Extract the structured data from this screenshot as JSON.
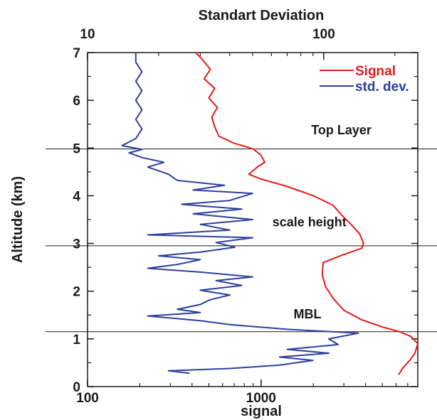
{
  "chart_data": {
    "type": "line",
    "title": "",
    "top_axis": {
      "label": "Standart Deviation",
      "scale": "log",
      "range": [
        10,
        250
      ],
      "ticks": [
        {
          "value": 10,
          "label": "10"
        },
        {
          "value": 100,
          "label": "100"
        }
      ]
    },
    "bottom_axis": {
      "label": "signal",
      "scale": "log",
      "range": [
        100,
        8000
      ],
      "ticks": [
        {
          "value": 100,
          "label": "100"
        },
        {
          "value": 1000,
          "label": "1000"
        }
      ]
    },
    "y_axis": {
      "label": "Altitude (km)",
      "range": [
        0,
        7
      ],
      "ticks": [
        {
          "value": 0,
          "label": "0"
        },
        {
          "value": 1,
          "label": "1"
        },
        {
          "value": 2,
          "label": "2"
        },
        {
          "value": 3,
          "label": "3"
        },
        {
          "value": 4,
          "label": "4"
        },
        {
          "value": 5,
          "label": "5"
        },
        {
          "value": 6,
          "label": "6"
        },
        {
          "value": 7,
          "label": "7"
        }
      ]
    },
    "grid": false,
    "legend_position": "top-right",
    "horizontal_lines": [
      {
        "y": 4.98,
        "label": "Top Layer",
        "label_y": 5.38,
        "label_x": 2900
      },
      {
        "y": 2.95,
        "label": "scale height",
        "label_y": 3.45,
        "label_x": 1900
      },
      {
        "y": 1.15,
        "label": "MBL",
        "label_y": 1.52,
        "label_x": 1850
      }
    ],
    "series": [
      {
        "name": "Signal",
        "color": "#e31a1c",
        "axis": "bottom",
        "points": [
          {
            "x": 6200,
            "y": 0.25
          },
          {
            "x": 6600,
            "y": 0.4
          },
          {
            "x": 7200,
            "y": 0.55
          },
          {
            "x": 7700,
            "y": 0.7
          },
          {
            "x": 8000,
            "y": 0.9
          },
          {
            "x": 7300,
            "y": 1.05
          },
          {
            "x": 6300,
            "y": 1.15
          },
          {
            "x": 5000,
            "y": 1.25
          },
          {
            "x": 3800,
            "y": 1.4
          },
          {
            "x": 3000,
            "y": 1.6
          },
          {
            "x": 2600,
            "y": 1.85
          },
          {
            "x": 2350,
            "y": 2.1
          },
          {
            "x": 2250,
            "y": 2.35
          },
          {
            "x": 2280,
            "y": 2.6
          },
          {
            "x": 2900,
            "y": 2.75
          },
          {
            "x": 3800,
            "y": 2.9
          },
          {
            "x": 3900,
            "y": 3.0
          },
          {
            "x": 3700,
            "y": 3.2
          },
          {
            "x": 3300,
            "y": 3.4
          },
          {
            "x": 2900,
            "y": 3.6
          },
          {
            "x": 2600,
            "y": 3.8
          },
          {
            "x": 2000,
            "y": 4.0
          },
          {
            "x": 1400,
            "y": 4.2
          },
          {
            "x": 1000,
            "y": 4.35
          },
          {
            "x": 850,
            "y": 4.45
          },
          {
            "x": 950,
            "y": 4.6
          },
          {
            "x": 1050,
            "y": 4.7
          },
          {
            "x": 1000,
            "y": 4.85
          },
          {
            "x": 900,
            "y": 4.98
          },
          {
            "x": 700,
            "y": 5.1
          },
          {
            "x": 570,
            "y": 5.25
          },
          {
            "x": 540,
            "y": 5.45
          },
          {
            "x": 520,
            "y": 5.65
          },
          {
            "x": 560,
            "y": 5.85
          },
          {
            "x": 500,
            "y": 6.05
          },
          {
            "x": 540,
            "y": 6.25
          },
          {
            "x": 470,
            "y": 6.45
          },
          {
            "x": 510,
            "y": 6.65
          },
          {
            "x": 460,
            "y": 6.85
          },
          {
            "x": 420,
            "y": 7.0
          }
        ]
      },
      {
        "name": "std. dev.",
        "color": "#2f3f9e",
        "axis": "top",
        "points": [
          {
            "x": 27,
            "y": 0.28
          },
          {
            "x": 22,
            "y": 0.33
          },
          {
            "x": 40,
            "y": 0.38
          },
          {
            "x": 65,
            "y": 0.45
          },
          {
            "x": 90,
            "y": 0.55
          },
          {
            "x": 65,
            "y": 0.62
          },
          {
            "x": 105,
            "y": 0.7
          },
          {
            "x": 70,
            "y": 0.78
          },
          {
            "x": 115,
            "y": 0.88
          },
          {
            "x": 105,
            "y": 1.0
          },
          {
            "x": 140,
            "y": 1.12
          },
          {
            "x": 70,
            "y": 1.2
          },
          {
            "x": 40,
            "y": 1.3
          },
          {
            "x": 30,
            "y": 1.38
          },
          {
            "x": 18,
            "y": 1.48
          },
          {
            "x": 30,
            "y": 1.55
          },
          {
            "x": 24,
            "y": 1.62
          },
          {
            "x": 30,
            "y": 1.72
          },
          {
            "x": 33,
            "y": 1.82
          },
          {
            "x": 40,
            "y": 1.92
          },
          {
            "x": 30,
            "y": 2.02
          },
          {
            "x": 45,
            "y": 2.12
          },
          {
            "x": 35,
            "y": 2.22
          },
          {
            "x": 50,
            "y": 2.3
          },
          {
            "x": 30,
            "y": 2.4
          },
          {
            "x": 18,
            "y": 2.48
          },
          {
            "x": 24,
            "y": 2.56
          },
          {
            "x": 30,
            "y": 2.66
          },
          {
            "x": 20,
            "y": 2.74
          },
          {
            "x": 30,
            "y": 2.82
          },
          {
            "x": 42,
            "y": 2.92
          },
          {
            "x": 35,
            "y": 3.02
          },
          {
            "x": 50,
            "y": 3.12
          },
          {
            "x": 18,
            "y": 3.18
          },
          {
            "x": 40,
            "y": 3.28
          },
          {
            "x": 30,
            "y": 3.4
          },
          {
            "x": 50,
            "y": 3.5
          },
          {
            "x": 28,
            "y": 3.62
          },
          {
            "x": 45,
            "y": 3.72
          },
          {
            "x": 25,
            "y": 3.82
          },
          {
            "x": 40,
            "y": 3.9
          },
          {
            "x": 50,
            "y": 4.05
          },
          {
            "x": 28,
            "y": 4.12
          },
          {
            "x": 38,
            "y": 4.22
          },
          {
            "x": 24,
            "y": 4.32
          },
          {
            "x": 22,
            "y": 4.45
          },
          {
            "x": 18,
            "y": 4.6
          },
          {
            "x": 21,
            "y": 4.7
          },
          {
            "x": 17,
            "y": 4.8
          },
          {
            "x": 15,
            "y": 4.9
          },
          {
            "x": 17,
            "y": 4.97
          },
          {
            "x": 14,
            "y": 5.05
          },
          {
            "x": 16,
            "y": 5.2
          },
          {
            "x": 17,
            "y": 5.4
          },
          {
            "x": 16,
            "y": 5.6
          },
          {
            "x": 17,
            "y": 5.8
          },
          {
            "x": 16,
            "y": 6.0
          },
          {
            "x": 17,
            "y": 6.2
          },
          {
            "x": 16,
            "y": 6.4
          },
          {
            "x": 17,
            "y": 6.6
          },
          {
            "x": 16,
            "y": 6.8
          },
          {
            "x": 16,
            "y": 7.0
          }
        ]
      }
    ]
  }
}
